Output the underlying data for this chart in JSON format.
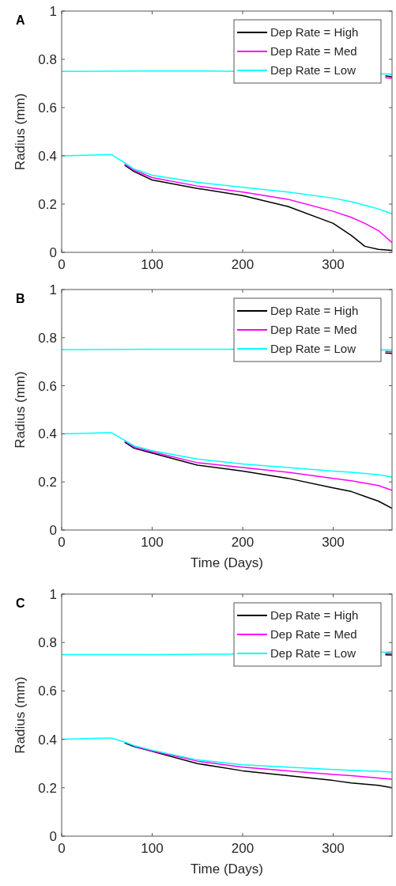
{
  "chart_data": [
    {
      "type": "line",
      "title": "A",
      "ylabel": "Radius (mm)",
      "xlim": [
        0,
        365
      ],
      "xticks": [
        0,
        100,
        200,
        300
      ],
      "ylim": [
        0,
        1
      ],
      "yticks": [
        0,
        0.2,
        0.4,
        0.6,
        0.8,
        1
      ],
      "legend": "top right",
      "grid": false,
      "line_style": "solid",
      "marker": "none",
      "series": [
        {
          "name": "Dep Rate = High",
          "color": "#000000",
          "x": [
            70,
            80,
            100,
            150,
            200,
            250,
            300,
            320,
            335,
            350,
            365
          ],
          "values": [
            0.36,
            0.335,
            0.3,
            0.265,
            0.235,
            0.19,
            0.12,
            0.07,
            0.025,
            0.012,
            0.008
          ]
        },
        {
          "name": "Dep Rate = Med",
          "color": "#ff00ff",
          "x": [
            70,
            80,
            100,
            150,
            200,
            250,
            300,
            320,
            335,
            350,
            365
          ],
          "values": [
            0.365,
            0.34,
            0.31,
            0.275,
            0.25,
            0.22,
            0.17,
            0.145,
            0.12,
            0.09,
            0.04
          ]
        },
        {
          "name": "Dep Rate = Low",
          "color": "#00ffff",
          "x": [
            0,
            50,
            55,
            70,
            80,
            100,
            150,
            200,
            250,
            300,
            320,
            335,
            350,
            365
          ],
          "values": [
            0.4,
            0.405,
            0.405,
            0.37,
            0.345,
            0.32,
            0.29,
            0.27,
            0.25,
            0.225,
            0.21,
            0.195,
            0.18,
            0.16
          ]
        },
        {
          "color": "#000000",
          "x": [
            358,
            365
          ],
          "values": [
            0.731,
            0.728
          ]
        },
        {
          "color": "#ff00ff",
          "x": [
            358,
            365
          ],
          "values": [
            0.724,
            0.721
          ]
        },
        {
          "color": "#00ffff",
          "x": [
            0,
            100,
            180,
            360,
            365
          ],
          "values": [
            0.75,
            0.752,
            0.751,
            0.739,
            0.737
          ]
        }
      ]
    },
    {
      "type": "line",
      "title": "B",
      "xlabel": "Time (Days)",
      "ylabel": "Radius (mm)",
      "xlim": [
        0,
        365
      ],
      "xticks": [
        0,
        100,
        200,
        300
      ],
      "ylim": [
        0,
        1
      ],
      "yticks": [
        0,
        0.2,
        0.4,
        0.6,
        0.8,
        1
      ],
      "legend": "top right",
      "grid": false,
      "line_style": "solid",
      "marker": "none",
      "series": [
        {
          "name": "Dep Rate = High",
          "color": "#000000",
          "x": [
            70,
            80,
            100,
            150,
            200,
            250,
            300,
            320,
            335,
            350,
            365
          ],
          "values": [
            0.365,
            0.34,
            0.32,
            0.27,
            0.245,
            0.215,
            0.175,
            0.16,
            0.14,
            0.12,
            0.09
          ]
        },
        {
          "name": "Dep Rate = Med",
          "color": "#ff00ff",
          "x": [
            70,
            80,
            100,
            150,
            200,
            250,
            300,
            320,
            335,
            350,
            365
          ],
          "values": [
            0.37,
            0.345,
            0.325,
            0.28,
            0.26,
            0.24,
            0.215,
            0.205,
            0.195,
            0.185,
            0.165
          ]
        },
        {
          "name": "Dep Rate = Low",
          "color": "#00ffff",
          "x": [
            0,
            50,
            55,
            70,
            80,
            100,
            150,
            200,
            250,
            300,
            320,
            335,
            350,
            365
          ],
          "values": [
            0.4,
            0.405,
            0.405,
            0.372,
            0.35,
            0.33,
            0.295,
            0.275,
            0.26,
            0.245,
            0.24,
            0.235,
            0.23,
            0.22
          ]
        },
        {
          "color": "#000000",
          "x": [
            358,
            365
          ],
          "values": [
            0.736,
            0.734
          ]
        },
        {
          "color": "#ff00ff",
          "x": [
            358,
            365
          ],
          "values": [
            0.743,
            0.741
          ]
        },
        {
          "color": "#00ffff",
          "x": [
            0,
            100,
            180,
            360,
            365
          ],
          "values": [
            0.75,
            0.752,
            0.752,
            0.749,
            0.748
          ]
        }
      ]
    },
    {
      "type": "line",
      "title": "C",
      "xlabel": "Time (Days)",
      "ylabel": "Radius (mm)",
      "xlim": [
        0,
        365
      ],
      "xticks": [
        0,
        100,
        200,
        300
      ],
      "ylim": [
        0,
        1
      ],
      "yticks": [
        0,
        0.2,
        0.4,
        0.6,
        0.8,
        1
      ],
      "legend": "top right",
      "grid": false,
      "line_style": "solid",
      "marker": "none",
      "series": [
        {
          "name": "Dep Rate = High",
          "color": "#000000",
          "x": [
            70,
            80,
            100,
            150,
            200,
            250,
            300,
            320,
            335,
            350,
            365
          ],
          "values": [
            0.385,
            0.37,
            0.35,
            0.3,
            0.27,
            0.25,
            0.23,
            0.22,
            0.215,
            0.21,
            0.2
          ]
        },
        {
          "name": "Dep Rate = Med",
          "color": "#ff00ff",
          "x": [
            80,
            100,
            150,
            200,
            250,
            300,
            320,
            335,
            350,
            365
          ],
          "values": [
            0.372,
            0.352,
            0.31,
            0.285,
            0.27,
            0.255,
            0.25,
            0.245,
            0.24,
            0.235
          ]
        },
        {
          "name": "Dep Rate = Low",
          "color": "#00ffff",
          "x": [
            0,
            50,
            55,
            70,
            80,
            100,
            150,
            200,
            250,
            300,
            320,
            335,
            350,
            365
          ],
          "values": [
            0.4,
            0.405,
            0.405,
            0.388,
            0.374,
            0.355,
            0.315,
            0.295,
            0.285,
            0.275,
            0.272,
            0.27,
            0.268,
            0.265
          ]
        },
        {
          "color": "#000000",
          "x": [
            358,
            365
          ],
          "values": [
            0.749,
            0.748
          ]
        },
        {
          "color": "#ff00ff",
          "x": [
            358,
            365
          ],
          "values": [
            0.755,
            0.755
          ]
        },
        {
          "color": "#00ffff",
          "x": [
            0,
            100,
            180,
            360,
            365
          ],
          "values": [
            0.75,
            0.75,
            0.752,
            0.761,
            0.762
          ]
        }
      ]
    }
  ]
}
